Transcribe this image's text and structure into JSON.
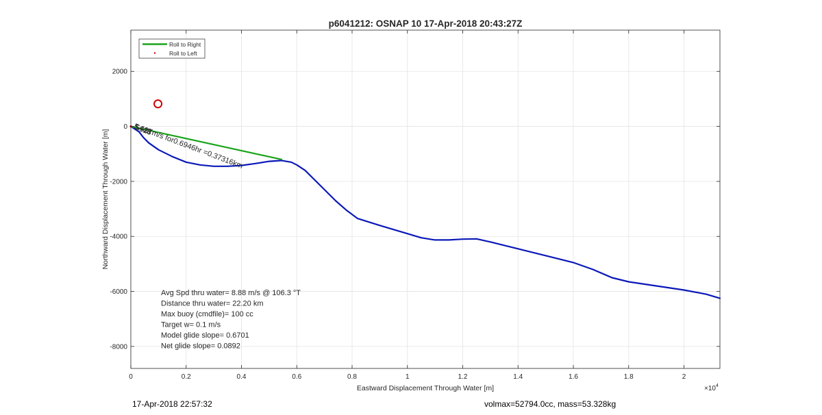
{
  "chart_data": {
    "type": "line",
    "title": "p6041212: OSNAP 10 17-Apr-2018 20:43:27Z",
    "xlabel": "Eastward Displacement Through Water [m]",
    "ylabel": "Northward Displacement Through Water [m]",
    "x_exponent_label": "×10",
    "x_exponent_power": "4",
    "xlim": [
      0,
      21300
    ],
    "ylim": [
      -8800,
      3500
    ],
    "x_ticks": [
      0,
      2000,
      4000,
      6000,
      8000,
      10000,
      12000,
      14000,
      16000,
      18000,
      20000
    ],
    "x_tick_labels": [
      "0",
      "0.2",
      "0.4",
      "0.6",
      "0.8",
      "1",
      "1.2",
      "1.4",
      "1.6",
      "1.8",
      "2"
    ],
    "y_ticks": [
      2000,
      0,
      -2000,
      -4000,
      -6000,
      -8000
    ],
    "y_tick_labels": [
      "2000",
      "0",
      "-2000",
      "-4000",
      "-6000",
      "-8000"
    ],
    "grid": true,
    "legend_position": "top-left",
    "legend": [
      {
        "label": "Roll to Right",
        "marker": "line",
        "color": "#1aa31a"
      },
      {
        "label": "Roll to Left",
        "marker": "dot",
        "color": "#cc0000"
      }
    ],
    "series": [
      {
        "name": "Roll to Right",
        "color": "#1aa31a",
        "x": [
          0,
          5450
        ],
        "y": [
          0,
          -1200
        ]
      },
      {
        "color": "#0a18b8",
        "x": [
          0,
          150,
          300,
          450,
          650,
          1000,
          1500,
          2000,
          2500,
          3000,
          3500,
          4000,
          4500,
          5000,
          5450,
          5800,
          6000,
          6300,
          6600,
          7000,
          7400,
          7800,
          8200,
          9000,
          10000,
          10500,
          11000,
          11500,
          12000,
          12500,
          13000,
          14000,
          15000,
          16000,
          16700,
          17400,
          18000,
          19000,
          20000,
          20800,
          21300
        ],
        "y": [
          0,
          -100,
          -200,
          -400,
          -600,
          -850,
          -1100,
          -1300,
          -1400,
          -1450,
          -1450,
          -1420,
          -1350,
          -1270,
          -1240,
          -1300,
          -1400,
          -1600,
          -1900,
          -2300,
          -2700,
          -3050,
          -3350,
          -3600,
          -3900,
          -4050,
          -4130,
          -4130,
          -4100,
          -4090,
          -4200,
          -4450,
          -4700,
          -4950,
          -5200,
          -5500,
          -5650,
          -5800,
          -5950,
          -6100,
          -6250
        ]
      }
    ],
    "markers": [
      {
        "x": 980,
        "y": 820,
        "color": "#cc0000",
        "shape": "circle"
      }
    ],
    "annotations": [
      {
        "text": "5.437m/s for0.6946hr =0.37316km",
        "x": 100,
        "y": -60,
        "rotation": 20.5
      },
      {
        "text": "5443",
        "x": 120,
        "y": -80,
        "rotation": 20.5
      },
      {
        "text": "5128",
        "x": 140,
        "y": -100,
        "rotation": 20.5
      }
    ],
    "stats_text": [
      "Avg Spd thru water=  8.88 m/s @ 106.3 °T",
      "Distance thru water= 22.20 km",
      "Max buoy (cmdfile)= 100 cc",
      "Target w= 0.1 m/s",
      "Model glide slope= 0.6701",
      "Net glide slope= 0.0892"
    ]
  },
  "footer": {
    "left": "17-Apr-2018 22:57:32",
    "right": "volmax=52794.0cc, mass=53.328kg"
  }
}
